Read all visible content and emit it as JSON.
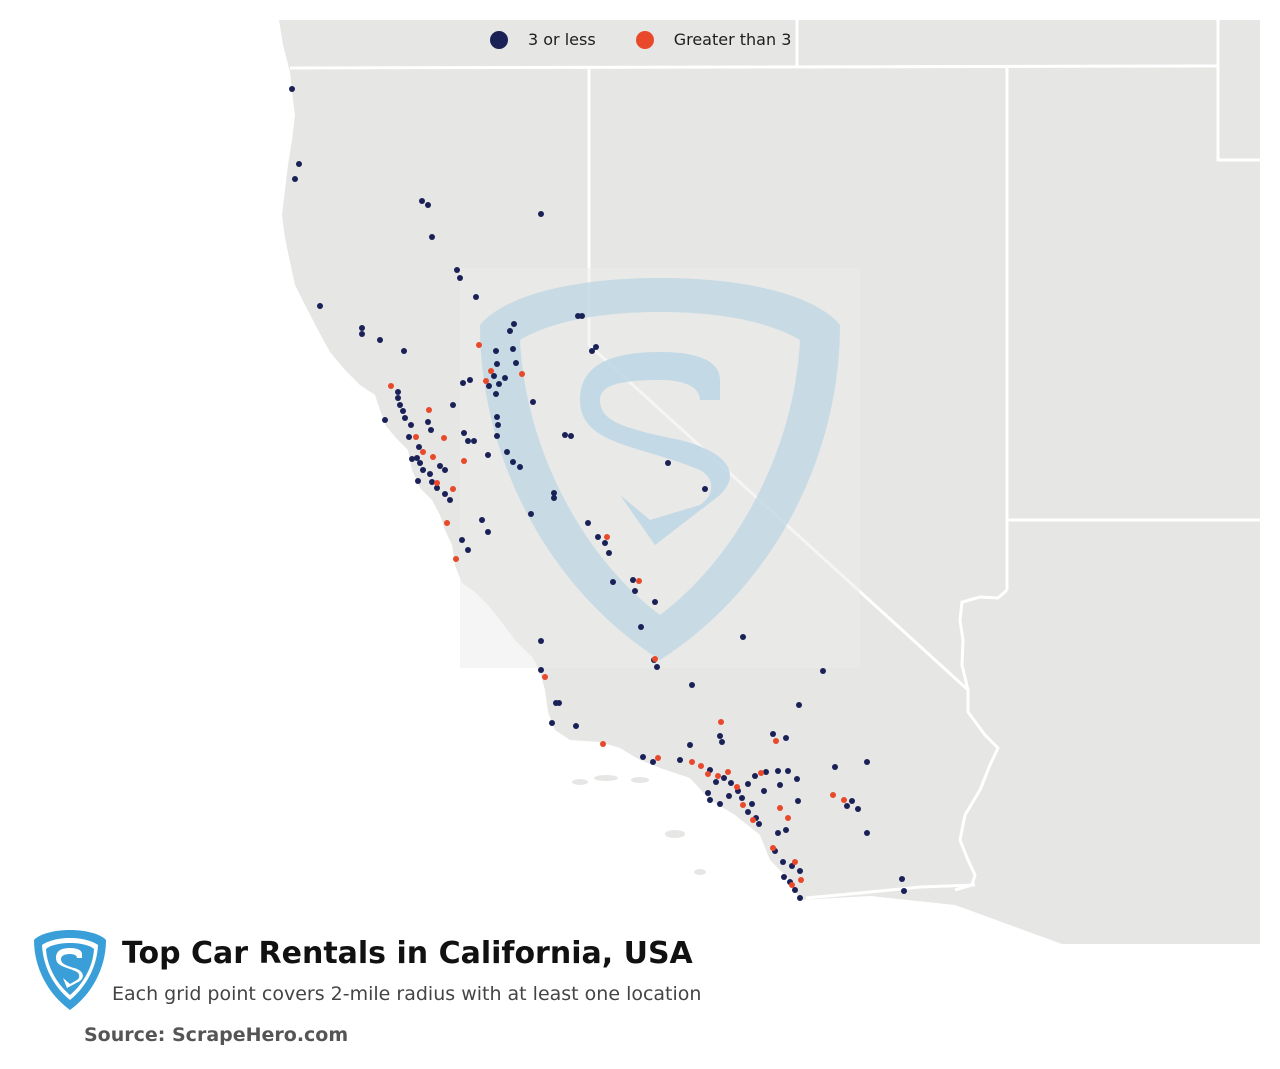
{
  "legend": {
    "items": [
      {
        "label": "3 or less",
        "color": "#1a2157"
      },
      {
        "label": "Greater than 3",
        "color": "#e8492a"
      }
    ]
  },
  "title": "Top Car Rentals in California, USA",
  "subtitle": "Each grid point covers 2-mile radius with at least one location",
  "source": "Source: ScrapeHero.com",
  "colors": {
    "land": "#e6e6e5",
    "border": "#ffffff",
    "low": "#1a2157",
    "high": "#e8492a",
    "logo": "#3a9fd8"
  },
  "markers": {
    "low": [
      [
        292,
        89
      ],
      [
        299,
        164
      ],
      [
        295,
        179
      ],
      [
        422,
        201
      ],
      [
        428,
        205
      ],
      [
        432,
        237
      ],
      [
        541,
        214
      ],
      [
        457,
        270
      ],
      [
        460,
        278
      ],
      [
        476,
        297
      ],
      [
        320,
        306
      ],
      [
        362,
        328
      ],
      [
        362,
        334
      ],
      [
        380,
        340
      ],
      [
        404,
        351
      ],
      [
        514,
        324
      ],
      [
        510,
        331
      ],
      [
        578,
        316
      ],
      [
        582,
        316
      ],
      [
        596,
        347
      ],
      [
        592,
        351
      ],
      [
        496,
        351
      ],
      [
        513,
        349
      ],
      [
        516,
        363
      ],
      [
        497,
        364
      ],
      [
        494,
        376
      ],
      [
        489,
        386
      ],
      [
        499,
        384
      ],
      [
        505,
        378
      ],
      [
        496,
        394
      ],
      [
        470,
        380
      ],
      [
        463,
        383
      ],
      [
        398,
        392
      ],
      [
        398,
        398
      ],
      [
        400,
        405
      ],
      [
        403,
        411
      ],
      [
        405,
        418
      ],
      [
        385,
        420
      ],
      [
        411,
        425
      ],
      [
        409,
        437
      ],
      [
        428,
        422
      ],
      [
        431,
        430
      ],
      [
        453,
        405
      ],
      [
        497,
        417
      ],
      [
        498,
        425
      ],
      [
        497,
        436
      ],
      [
        468,
        441
      ],
      [
        464,
        433
      ],
      [
        474,
        441
      ],
      [
        507,
        452
      ],
      [
        513,
        462
      ],
      [
        520,
        467
      ],
      [
        488,
        455
      ],
      [
        419,
        447
      ],
      [
        417,
        458
      ],
      [
        420,
        463
      ],
      [
        423,
        470
      ],
      [
        430,
        474
      ],
      [
        432,
        482
      ],
      [
        437,
        488
      ],
      [
        445,
        494
      ],
      [
        450,
        500
      ],
      [
        418,
        481
      ],
      [
        412,
        459
      ],
      [
        440,
        466
      ],
      [
        445,
        470
      ],
      [
        565,
        435
      ],
      [
        571,
        436
      ],
      [
        533,
        402
      ],
      [
        554,
        493
      ],
      [
        554,
        498
      ],
      [
        482,
        520
      ],
      [
        488,
        532
      ],
      [
        462,
        540
      ],
      [
        468,
        550
      ],
      [
        531,
        514
      ],
      [
        588,
        523
      ],
      [
        598,
        537
      ],
      [
        605,
        543
      ],
      [
        609,
        553
      ],
      [
        613,
        582
      ],
      [
        633,
        580
      ],
      [
        635,
        591
      ],
      [
        655,
        602
      ],
      [
        641,
        627
      ],
      [
        705,
        489
      ],
      [
        668,
        463
      ],
      [
        541,
        641
      ],
      [
        743,
        637
      ],
      [
        654,
        660
      ],
      [
        657,
        667
      ],
      [
        823,
        671
      ],
      [
        541,
        670
      ],
      [
        556,
        703
      ],
      [
        559,
        703
      ],
      [
        552,
        723
      ],
      [
        576,
        726
      ],
      [
        692,
        685
      ],
      [
        799,
        705
      ],
      [
        786,
        738
      ],
      [
        773,
        734
      ],
      [
        690,
        745
      ],
      [
        680,
        760
      ],
      [
        643,
        757
      ],
      [
        653,
        762
      ],
      [
        720,
        736
      ],
      [
        722,
        742
      ],
      [
        835,
        767
      ],
      [
        867,
        762
      ],
      [
        852,
        801
      ],
      [
        858,
        809
      ],
      [
        847,
        806
      ],
      [
        867,
        833
      ],
      [
        902,
        879
      ],
      [
        904,
        891
      ],
      [
        775,
        851
      ],
      [
        783,
        862
      ],
      [
        792,
        866
      ],
      [
        800,
        871
      ],
      [
        784,
        877
      ],
      [
        790,
        882
      ],
      [
        795,
        890
      ],
      [
        800,
        898
      ],
      [
        786,
        830
      ],
      [
        780,
        785
      ],
      [
        798,
        801
      ],
      [
        764,
        791
      ],
      [
        752,
        804
      ],
      [
        748,
        812
      ],
      [
        756,
        818
      ],
      [
        759,
        824
      ],
      [
        778,
        833
      ],
      [
        710,
        770
      ],
      [
        716,
        782
      ],
      [
        724,
        778
      ],
      [
        731,
        783
      ],
      [
        738,
        791
      ],
      [
        742,
        798
      ],
      [
        708,
        793
      ],
      [
        710,
        800
      ],
      [
        720,
        804
      ],
      [
        729,
        796
      ],
      [
        748,
        784
      ],
      [
        755,
        776
      ],
      [
        766,
        772
      ],
      [
        778,
        771
      ],
      [
        788,
        771
      ],
      [
        797,
        779
      ]
    ],
    "high": [
      [
        391,
        386
      ],
      [
        429,
        410
      ],
      [
        416,
        437
      ],
      [
        444,
        438
      ],
      [
        423,
        452
      ],
      [
        433,
        457
      ],
      [
        464,
        461
      ],
      [
        437,
        483
      ],
      [
        453,
        489
      ],
      [
        447,
        523
      ],
      [
        456,
        559
      ],
      [
        486,
        381
      ],
      [
        491,
        371
      ],
      [
        479,
        345
      ],
      [
        522,
        374
      ],
      [
        607,
        537
      ],
      [
        639,
        581
      ],
      [
        655,
        659
      ],
      [
        545,
        677
      ],
      [
        603,
        744
      ],
      [
        658,
        758
      ],
      [
        721,
        722
      ],
      [
        776,
        741
      ],
      [
        692,
        762
      ],
      [
        701,
        766
      ],
      [
        708,
        774
      ],
      [
        718,
        776
      ],
      [
        728,
        772
      ],
      [
        737,
        787
      ],
      [
        743,
        805
      ],
      [
        753,
        820
      ],
      [
        761,
        773
      ],
      [
        833,
        795
      ],
      [
        844,
        800
      ],
      [
        773,
        848
      ],
      [
        795,
        862
      ],
      [
        792,
        885
      ],
      [
        801,
        880
      ],
      [
        780,
        808
      ],
      [
        788,
        818
      ]
    ]
  }
}
